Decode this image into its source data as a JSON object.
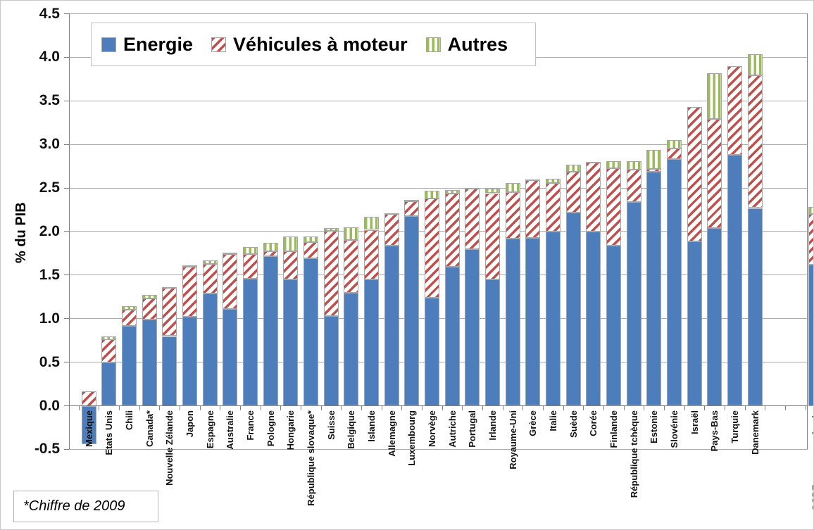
{
  "note": "*Chiffre de 2009",
  "chart_data": {
    "type": "bar",
    "stacked": true,
    "title": "",
    "xlabel": "",
    "ylabel": "% du PIB",
    "ylim": [
      -0.5,
      4.5
    ],
    "yticks": [
      "4.5",
      "4.0",
      "3.5",
      "3.0",
      "2.5",
      "2.0",
      "1.5",
      "1.0",
      "0.5",
      "0.0",
      "-0.5"
    ],
    "grid": true,
    "legend_position": "top-left",
    "gap_before_last_category": true,
    "categories": [
      "Mexique",
      "Etats Unis",
      "Chili",
      "Canada*",
      "Nouvelle Zélande",
      "Japon",
      "Espagne",
      "Australie",
      "France",
      "Pologne",
      "Hongarie",
      "République slovaque*",
      "Suisse",
      "Belgique",
      "Islande",
      "Allemagne",
      "Luxembourg",
      "Norvège",
      "Autriche",
      "Portugal",
      "Irlande",
      "Royaume-Uni",
      "Grèce",
      "Italie",
      "Suède",
      "Corée",
      "Finlande",
      "République tchèque",
      "Estonie",
      "Slovénie",
      "Israël",
      "Pays-Bas",
      "Turquie",
      "Danemark",
      "OCDE moyenne simple"
    ],
    "series": [
      {
        "name": "Energie",
        "color": "#4d7dba",
        "pattern": "solid",
        "values": [
          -0.44,
          0.5,
          0.92,
          0.99,
          0.8,
          1.02,
          1.29,
          1.11,
          1.46,
          1.72,
          1.45,
          1.69,
          1.03,
          1.3,
          1.45,
          1.84,
          2.18,
          1.24,
          1.6,
          1.8,
          1.45,
          1.92,
          1.93,
          2.0,
          2.22,
          2.0,
          1.84,
          2.34,
          2.69,
          2.83,
          1.89,
          2.04,
          2.88,
          2.27,
          1.62
        ]
      },
      {
        "name": "Véhicules à moteur",
        "color": "#c0504d",
        "pattern": "diagonal-hatch",
        "values": [
          0.17,
          0.26,
          0.18,
          0.24,
          0.55,
          0.58,
          0.34,
          0.63,
          0.28,
          0.05,
          0.32,
          0.19,
          0.98,
          0.6,
          0.57,
          0.36,
          0.17,
          1.14,
          0.84,
          0.69,
          0.99,
          0.53,
          0.66,
          0.56,
          0.47,
          0.79,
          0.89,
          0.37,
          0.03,
          0.12,
          1.54,
          1.25,
          1.02,
          1.52,
          0.58
        ]
      },
      {
        "name": "Autres",
        "color": "#9bbb59",
        "pattern": "vertical-hatch",
        "values": [
          0.0,
          0.04,
          0.04,
          0.04,
          0.01,
          0.01,
          0.04,
          0.02,
          0.08,
          0.1,
          0.17,
          0.06,
          0.03,
          0.15,
          0.15,
          0.01,
          0.01,
          0.09,
          0.04,
          0.01,
          0.05,
          0.11,
          0.01,
          0.05,
          0.08,
          0.01,
          0.08,
          0.1,
          0.22,
          0.1,
          0.0,
          0.53,
          0.0,
          0.25,
          0.08
        ]
      }
    ]
  }
}
